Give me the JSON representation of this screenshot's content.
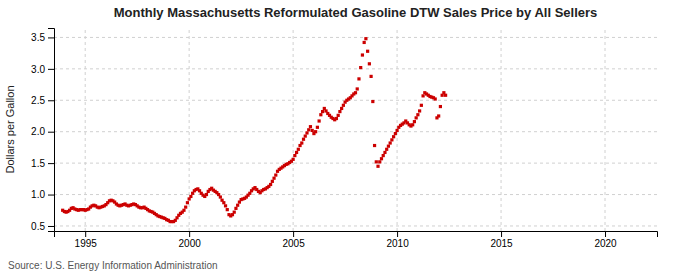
{
  "chart_data": {
    "type": "scatter",
    "title": "Monthly Massachusetts Reformulated Gasoline DTW Sales Price by All Sellers",
    "y_label": "Dollars per Gallon",
    "annotations": [
      "Source: U.S. Energy Information Administration"
    ],
    "color": "#cc0000",
    "marker": "square",
    "grid": true,
    "xlim": [
      1993.5,
      2022.5
    ],
    "ylim": [
      0.42,
      3.65
    ],
    "xticks": [
      1995,
      2000,
      2005,
      2010,
      2015,
      2020
    ],
    "yticks": [
      0.5,
      {
        "value": 1.0,
        "label": "1.0"
      },
      1.5,
      {
        "value": 2.0,
        "label": "2.0"
      },
      2.5,
      {
        "value": 3.0,
        "label": "3.0"
      },
      3.5
    ],
    "x": [
      1993.917,
      1994.0,
      1994.083,
      1994.167,
      1994.25,
      1994.333,
      1994.417,
      1994.5,
      1994.583,
      1994.667,
      1994.75,
      1994.833,
      1994.917,
      1995.0,
      1995.083,
      1995.167,
      1995.25,
      1995.333,
      1995.417,
      1995.5,
      1995.583,
      1995.667,
      1995.75,
      1995.833,
      1995.917,
      1996.0,
      1996.083,
      1996.167,
      1996.25,
      1996.333,
      1996.417,
      1996.5,
      1996.583,
      1996.667,
      1996.75,
      1996.833,
      1996.917,
      1997.0,
      1997.083,
      1997.167,
      1997.25,
      1997.333,
      1997.417,
      1997.5,
      1997.583,
      1997.667,
      1997.75,
      1997.833,
      1997.917,
      1998.0,
      1998.083,
      1998.167,
      1998.25,
      1998.333,
      1998.417,
      1998.5,
      1998.583,
      1998.667,
      1998.75,
      1998.833,
      1998.917,
      1999.0,
      1999.083,
      1999.167,
      1999.25,
      1999.333,
      1999.417,
      1999.5,
      1999.583,
      1999.667,
      1999.75,
      1999.833,
      1999.917,
      2000.0,
      2000.083,
      2000.167,
      2000.25,
      2000.333,
      2000.417,
      2000.5,
      2000.583,
      2000.667,
      2000.75,
      2000.833,
      2000.917,
      2001.0,
      2001.083,
      2001.167,
      2001.25,
      2001.333,
      2001.417,
      2001.5,
      2001.583,
      2001.667,
      2001.75,
      2001.833,
      2001.917,
      2002.0,
      2002.083,
      2002.167,
      2002.25,
      2002.333,
      2002.417,
      2002.5,
      2002.583,
      2002.667,
      2002.75,
      2002.833,
      2002.917,
      2003.0,
      2003.083,
      2003.167,
      2003.25,
      2003.333,
      2003.417,
      2003.5,
      2003.583,
      2003.667,
      2003.75,
      2003.833,
      2003.917,
      2004.0,
      2004.083,
      2004.167,
      2004.25,
      2004.333,
      2004.417,
      2004.5,
      2004.583,
      2004.667,
      2004.75,
      2004.833,
      2004.917,
      2005.0,
      2005.083,
      2005.167,
      2005.25,
      2005.333,
      2005.417,
      2005.5,
      2005.583,
      2005.667,
      2005.75,
      2005.833,
      2005.917,
      2006.0,
      2006.083,
      2006.167,
      2006.25,
      2006.333,
      2006.417,
      2006.5,
      2006.583,
      2006.667,
      2006.75,
      2006.833,
      2006.917,
      2007.0,
      2007.083,
      2007.167,
      2007.25,
      2007.333,
      2007.417,
      2007.5,
      2007.583,
      2007.667,
      2007.75,
      2007.833,
      2007.917,
      2008.0,
      2008.083,
      2008.167,
      2008.25,
      2008.333,
      2008.417,
      2008.5,
      2008.583,
      2008.667,
      2008.75,
      2008.833,
      2008.917,
      2009.0,
      2009.083,
      2009.167,
      2009.25,
      2009.333,
      2009.417,
      2009.5,
      2009.583,
      2009.667,
      2009.75,
      2009.833,
      2009.917,
      2010.0,
      2010.083,
      2010.167,
      2010.25,
      2010.333,
      2010.417,
      2010.5,
      2010.583,
      2010.667,
      2010.75,
      2010.833,
      2010.917,
      2011.0,
      2011.083,
      2011.167,
      2011.25,
      2011.333,
      2011.417,
      2011.5,
      2011.583,
      2011.667,
      2011.75,
      2011.833,
      2011.917,
      2012.0,
      2012.083,
      2012.167,
      2012.25,
      2012.333
    ],
    "values": [
      0.75,
      0.73,
      0.72,
      0.73,
      0.75,
      0.78,
      0.79,
      0.77,
      0.76,
      0.75,
      0.76,
      0.76,
      0.76,
      0.75,
      0.76,
      0.77,
      0.8,
      0.82,
      0.83,
      0.82,
      0.8,
      0.79,
      0.8,
      0.81,
      0.82,
      0.84,
      0.87,
      0.9,
      0.91,
      0.9,
      0.88,
      0.85,
      0.83,
      0.82,
      0.83,
      0.84,
      0.85,
      0.83,
      0.82,
      0.83,
      0.84,
      0.85,
      0.84,
      0.82,
      0.8,
      0.79,
      0.79,
      0.8,
      0.78,
      0.76,
      0.74,
      0.73,
      0.72,
      0.7,
      0.68,
      0.66,
      0.65,
      0.64,
      0.63,
      0.62,
      0.6,
      0.59,
      0.57,
      0.57,
      0.57,
      0.59,
      0.63,
      0.67,
      0.7,
      0.72,
      0.75,
      0.8,
      0.87,
      0.93,
      0.97,
      1.02,
      1.06,
      1.08,
      1.09,
      1.06,
      1.02,
      0.99,
      0.97,
      1.0,
      1.05,
      1.08,
      1.1,
      1.07,
      1.05,
      1.03,
      1.0,
      0.96,
      0.91,
      0.87,
      0.82,
      0.76,
      0.68,
      0.66,
      0.68,
      0.72,
      0.78,
      0.83,
      0.88,
      0.92,
      0.93,
      0.94,
      0.96,
      0.99,
      1.02,
      1.06,
      1.09,
      1.11,
      1.08,
      1.05,
      1.03,
      1.06,
      1.08,
      1.09,
      1.11,
      1.13,
      1.16,
      1.21,
      1.26,
      1.31,
      1.37,
      1.4,
      1.42,
      1.44,
      1.46,
      1.48,
      1.49,
      1.51,
      1.53,
      1.56,
      1.62,
      1.67,
      1.72,
      1.78,
      1.82,
      1.88,
      1.93,
      1.98,
      2.03,
      2.08,
      2.02,
      1.97,
      2.0,
      2.07,
      2.17,
      2.27,
      2.32,
      2.37,
      2.33,
      2.29,
      2.26,
      2.23,
      2.21,
      2.19,
      2.21,
      2.26,
      2.32,
      2.37,
      2.42,
      2.47,
      2.5,
      2.52,
      2.54,
      2.57,
      2.6,
      2.62,
      2.68,
      2.84,
      3.02,
      3.22,
      3.42,
      3.48,
      3.28,
      3.08,
      2.88,
      2.48,
      1.78,
      1.52,
      1.45,
      1.52,
      1.57,
      1.62,
      1.67,
      1.72,
      1.77,
      1.82,
      1.87,
      1.92,
      1.97,
      2.02,
      2.07,
      2.1,
      2.12,
      2.14,
      2.17,
      2.14,
      2.11,
      2.09,
      2.11,
      2.16,
      2.22,
      2.27,
      2.33,
      2.42,
      2.57,
      2.62,
      2.6,
      2.58,
      2.56,
      2.55,
      2.54,
      2.52,
      2.22,
      2.25,
      2.4,
      2.58,
      2.62,
      2.58
    ]
  }
}
